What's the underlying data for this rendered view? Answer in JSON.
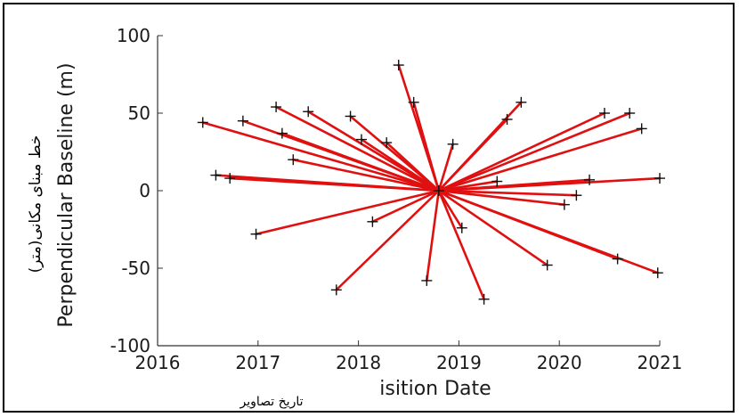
{
  "chart_data": {
    "type": "scatter",
    "title": "",
    "xlabel": "isition Date",
    "ylabel": "Perpendicular Baseline (m)",
    "xlabel_fa": "تاریخ تصاویر",
    "ylabel_fa": "خط مبنای مکانی(متر)",
    "xlim": [
      2016,
      2021
    ],
    "ylim": [
      -100,
      100
    ],
    "x_ticks": [
      2016,
      2017,
      2018,
      2019,
      2020,
      2021
    ],
    "y_ticks": [
      100,
      50,
      0,
      -50,
      -100
    ],
    "grid": false,
    "master": {
      "x": 2018.8,
      "y": 0
    },
    "connection_color": "#e01010",
    "marker": "+",
    "points": [
      {
        "x": 2016.45,
        "y": 44
      },
      {
        "x": 2016.58,
        "y": 10
      },
      {
        "x": 2016.72,
        "y": 8
      },
      {
        "x": 2016.85,
        "y": 45
      },
      {
        "x": 2016.98,
        "y": -28
      },
      {
        "x": 2017.18,
        "y": 54
      },
      {
        "x": 2017.24,
        "y": 37
      },
      {
        "x": 2017.35,
        "y": 20
      },
      {
        "x": 2017.5,
        "y": 51
      },
      {
        "x": 2017.78,
        "y": -64
      },
      {
        "x": 2017.92,
        "y": 48
      },
      {
        "x": 2018.03,
        "y": 33
      },
      {
        "x": 2018.14,
        "y": -20
      },
      {
        "x": 2018.28,
        "y": 31
      },
      {
        "x": 2018.4,
        "y": 81
      },
      {
        "x": 2018.55,
        "y": 57
      },
      {
        "x": 2018.68,
        "y": -58
      },
      {
        "x": 2018.94,
        "y": 30
      },
      {
        "x": 2019.03,
        "y": -24
      },
      {
        "x": 2019.25,
        "y": -70
      },
      {
        "x": 2019.38,
        "y": 6
      },
      {
        "x": 2019.48,
        "y": 46
      },
      {
        "x": 2019.62,
        "y": 57
      },
      {
        "x": 2019.88,
        "y": -48
      },
      {
        "x": 2020.05,
        "y": -9
      },
      {
        "x": 2020.17,
        "y": -3
      },
      {
        "x": 2020.3,
        "y": 7
      },
      {
        "x": 2020.45,
        "y": 50
      },
      {
        "x": 2020.58,
        "y": -44
      },
      {
        "x": 2020.7,
        "y": 50
      },
      {
        "x": 2020.82,
        "y": 40
      },
      {
        "x": 2020.98,
        "y": -53
      },
      {
        "x": 2021.0,
        "y": 8
      }
    ]
  }
}
